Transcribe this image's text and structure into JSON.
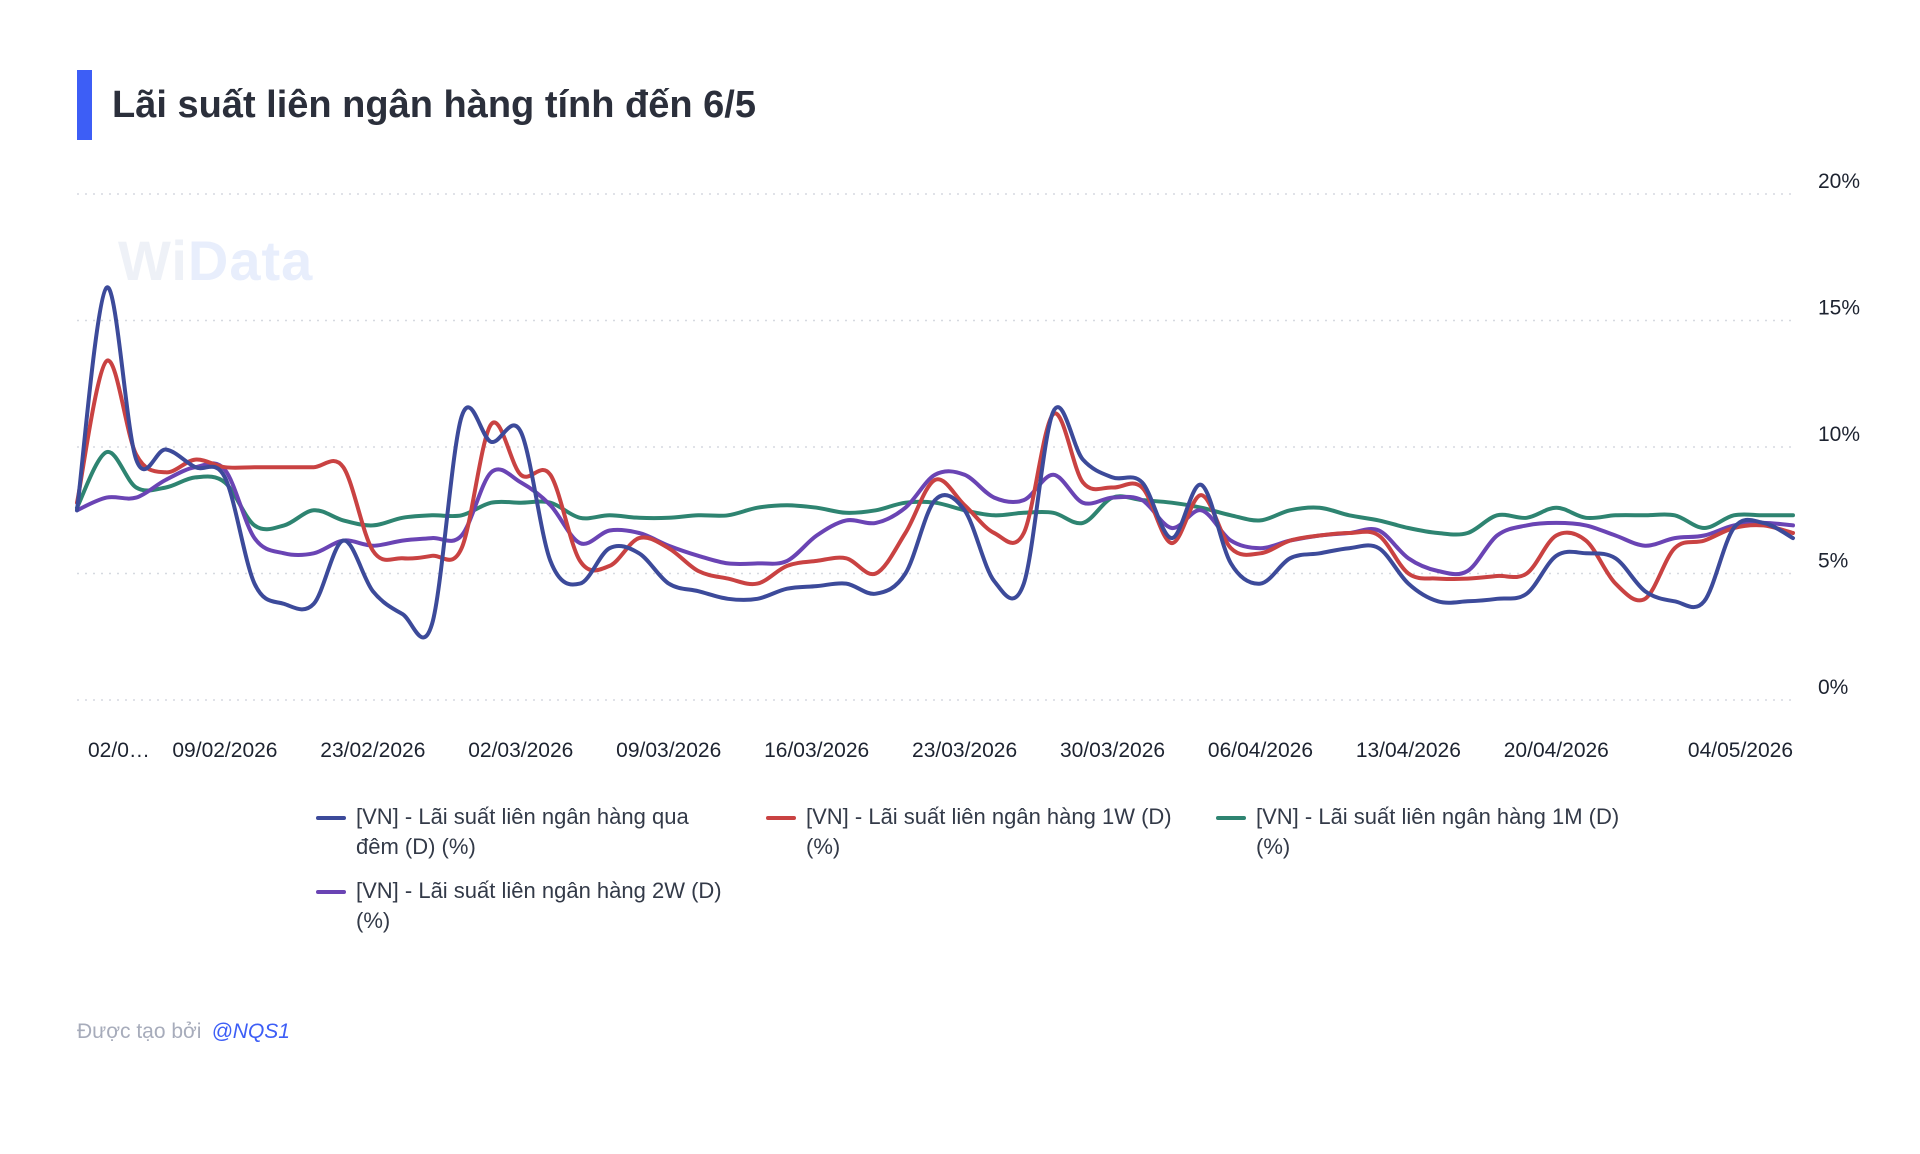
{
  "header": {
    "title": "Lãi suất liên ngân hàng tính đến 6/5"
  },
  "watermark": {
    "brand_a": "Wi",
    "brand_b": "Data"
  },
  "footer": {
    "label": "Được tạo bởi",
    "author": "@NQS1"
  },
  "colors": {
    "accent": "#3d5ef6",
    "overnight": "#3c4a9a",
    "w1": "#c94242",
    "m1": "#2e8471",
    "w2": "#6a44b4",
    "grid": "#d6d9e0"
  },
  "chart_data": {
    "type": "line",
    "title": "Lãi suất liên ngân hàng tính đến 6/5",
    "xlabel": "",
    "ylabel": "",
    "y_axis_side": "right",
    "ylim": [
      0,
      20
    ],
    "y_ticks": [
      0,
      5,
      10,
      15,
      20
    ],
    "y_tick_labels": [
      "0%",
      "5%",
      "10%",
      "15%",
      "20%"
    ],
    "x_tick_labels": [
      {
        "i": 0,
        "label": "02/0…"
      },
      {
        "i": 5,
        "label": "09/02/2026"
      },
      {
        "i": 10,
        "label": "23/02/2026"
      },
      {
        "i": 15,
        "label": "02/03/2026"
      },
      {
        "i": 20,
        "label": "09/03/2026"
      },
      {
        "i": 25,
        "label": "16/03/2026"
      },
      {
        "i": 30,
        "label": "23/03/2026"
      },
      {
        "i": 35,
        "label": "30/03/2026"
      },
      {
        "i": 40,
        "label": "06/04/2026"
      },
      {
        "i": 45,
        "label": "13/04/2026"
      },
      {
        "i": 50,
        "label": "20/04/2026"
      },
      {
        "i": 57,
        "label": "04/05/2026"
      }
    ],
    "grid": true,
    "legend_position": "bottom",
    "series": [
      {
        "name": "[VN] - Lãi suất liên ngân hàng qua đêm (D) (%)",
        "color_key": "overnight",
        "values": [
          7.5,
          16.3,
          9.5,
          9.9,
          9.2,
          8.8,
          4.6,
          3.8,
          3.8,
          6.3,
          4.3,
          3.4,
          3.0,
          11.2,
          10.2,
          10.6,
          5.5,
          4.6,
          6.0,
          5.8,
          4.6,
          4.3,
          4.0,
          4.0,
          4.4,
          4.5,
          4.6,
          4.2,
          5.0,
          7.9,
          7.5,
          4.7,
          4.6,
          11.4,
          9.5,
          8.8,
          8.6,
          6.4,
          8.5,
          5.4,
          4.6,
          5.6,
          5.8,
          6.0,
          6.0,
          4.6,
          3.9,
          3.9,
          4.0,
          4.2,
          5.7,
          5.8,
          5.6,
          4.3,
          3.9,
          3.9,
          6.8,
          7.0,
          6.4
        ]
      },
      {
        "name": "[VN] - Lãi suất liên ngân hàng 1W (D) (%)",
        "color_key": "w1",
        "values": [
          7.8,
          13.4,
          9.7,
          9.0,
          9.5,
          9.2,
          9.2,
          9.2,
          9.2,
          9.2,
          5.9,
          5.6,
          5.7,
          6.0,
          10.9,
          8.9,
          8.9,
          5.5,
          5.3,
          6.4,
          6.0,
          5.1,
          4.8,
          4.6,
          5.3,
          5.5,
          5.6,
          5.0,
          6.6,
          8.7,
          7.7,
          6.6,
          6.6,
          11.3,
          8.6,
          8.4,
          8.4,
          6.2,
          8.1,
          6.0,
          5.8,
          6.3,
          6.5,
          6.6,
          6.5,
          5.0,
          4.8,
          4.8,
          4.9,
          5.0,
          6.5,
          6.3,
          4.6,
          4.0,
          6.0,
          6.3,
          6.8,
          6.9,
          6.6
        ]
      },
      {
        "name": "[VN] - Lãi suất liên ngân hàng 1M (D) (%)",
        "color_key": "m1",
        "values": [
          7.6,
          9.8,
          8.4,
          8.4,
          8.8,
          8.6,
          6.9,
          6.9,
          7.5,
          7.1,
          6.9,
          7.2,
          7.3,
          7.3,
          7.8,
          7.8,
          7.8,
          7.2,
          7.3,
          7.2,
          7.2,
          7.3,
          7.3,
          7.6,
          7.7,
          7.6,
          7.4,
          7.5,
          7.8,
          7.8,
          7.5,
          7.3,
          7.4,
          7.4,
          7.0,
          8.0,
          7.9,
          7.8,
          7.6,
          7.3,
          7.1,
          7.5,
          7.6,
          7.3,
          7.1,
          6.8,
          6.6,
          6.6,
          7.3,
          7.2,
          7.6,
          7.2,
          7.3,
          7.3,
          7.3,
          6.8,
          7.3,
          7.3,
          7.3
        ]
      },
      {
        "name": "[VN] - Lãi suất liên ngân hàng 2W (D) (%)",
        "color_key": "w2",
        "values": [
          7.5,
          8.0,
          8.0,
          8.7,
          9.2,
          9.1,
          6.4,
          5.8,
          5.8,
          6.3,
          6.1,
          6.3,
          6.4,
          6.5,
          9.0,
          8.6,
          7.7,
          6.2,
          6.7,
          6.6,
          6.1,
          5.7,
          5.4,
          5.4,
          5.5,
          6.5,
          7.1,
          7.0,
          7.6,
          8.9,
          8.9,
          8.0,
          7.9,
          8.9,
          7.8,
          8.0,
          7.9,
          6.8,
          7.5,
          6.3,
          6.0,
          6.3,
          6.5,
          6.6,
          6.7,
          5.6,
          5.1,
          5.1,
          6.5,
          6.9,
          7.0,
          6.9,
          6.5,
          6.1,
          6.4,
          6.5,
          6.9,
          7.0,
          6.9
        ]
      }
    ]
  }
}
